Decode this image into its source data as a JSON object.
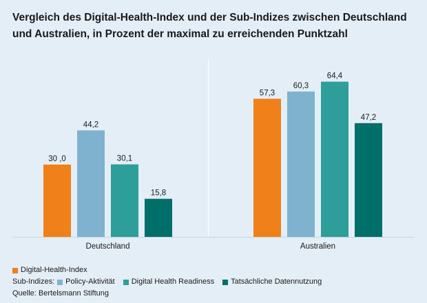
{
  "title": {
    "bold": "Vergleich des Digital-Health-Index und der Sub-Indizes zwischen Deutschland und Australien,",
    "normal": " in Prozent der maximal zu erreichenden Punktzahl"
  },
  "legend": {
    "main_label": "Digital-Health-Index",
    "sub_prefix": "Sub-Indizes:",
    "sub_items": [
      "Policy-Aktivität",
      "Digital Health Readiness",
      "Tatsächliche Datennutzung"
    ],
    "source": "Quelle: Bertelsmann Stiftung"
  },
  "colors": {
    "digital_health_index": "#f0801a",
    "policy": "#7fb2cf",
    "readiness": "#2e9e9b",
    "datennutzung": "#006e69"
  },
  "chart_data": {
    "type": "bar",
    "title": "Vergleich des Digital-Health-Index und der Sub-Indizes zwischen Deutschland und Australien",
    "categories": [
      "Deutschland",
      "Australien"
    ],
    "series": [
      {
        "name": "Digital-Health-Index",
        "values": [
          30.0,
          57.3
        ],
        "labels": [
          "30 ,0",
          "57,3"
        ]
      },
      {
        "name": "Policy-Aktivität",
        "values": [
          44.2,
          60.3
        ],
        "labels": [
          "44,2",
          "60,3"
        ]
      },
      {
        "name": "Digital Health Readiness",
        "values": [
          30.1,
          64.4
        ],
        "labels": [
          "30,1",
          "64,4"
        ]
      },
      {
        "name": "Tatsächliche Datennutzung",
        "values": [
          15.8,
          47.2
        ],
        "labels": [
          "15,8",
          "47,2"
        ]
      }
    ],
    "ylim": [
      0,
      100
    ],
    "grid": false,
    "legend_position": "bottom-left"
  }
}
